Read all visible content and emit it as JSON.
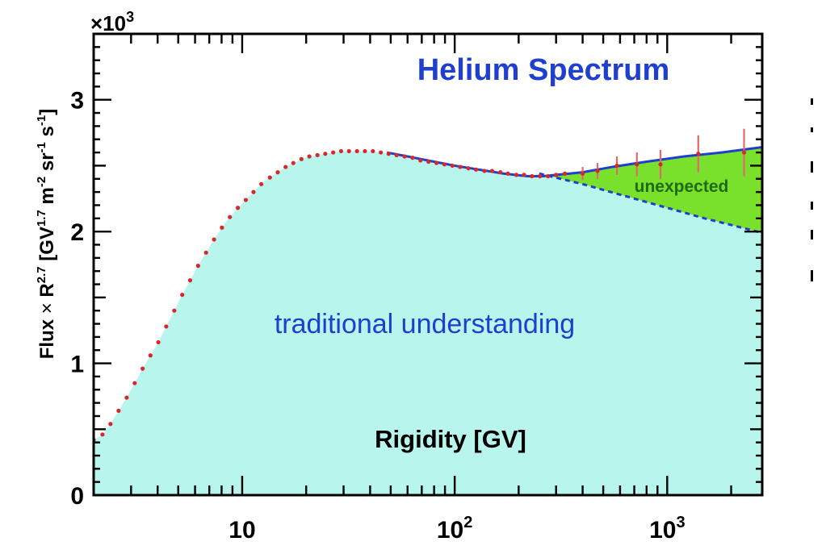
{
  "chart_data": {
    "type": "line",
    "title": "Helium Spectrum",
    "xlabel": "Rigidity [GV]",
    "ylabel": "Flux × R^2.7 [GV^1.7 m^-2 sr^-1 s^-1]",
    "ylabel_parts": {
      "a": "Flux",
      "times": "×",
      "b": "R",
      "b_sup": "2.7",
      "c": "[GV",
      "c_sup": "1.7",
      "d": "m",
      "d_sup": "-2",
      "e": "sr",
      "e_sup": "-1",
      "f": "s",
      "f_sup": "-1",
      "g": "]"
    },
    "y_multiplier": {
      "base": "×10",
      "exp": "3"
    },
    "x_scale": "log",
    "xlim": [
      2,
      2800
    ],
    "ylim": [
      0,
      3.5
    ],
    "x_ticks": [
      {
        "value": 10,
        "base": "10",
        "exp": ""
      },
      {
        "value": 100,
        "base": "10",
        "exp": "2"
      },
      {
        "value": 1000,
        "base": "10",
        "exp": "3"
      }
    ],
    "y_ticks": [
      {
        "value": 0,
        "label": "0"
      },
      {
        "value": 1,
        "label": "1"
      },
      {
        "value": 2,
        "label": "2"
      },
      {
        "value": 3,
        "label": "3"
      }
    ],
    "annotations": [
      {
        "text": "traditional understanding",
        "color": "#1c3fd0"
      },
      {
        "text": "unexpected",
        "color": "#1f6b12"
      }
    ],
    "region_colors": {
      "traditional": "#b8f5ec",
      "unexpected": "#79e02c",
      "fit_line": "#1f3fcf",
      "data_points": "#d8282a"
    },
    "series": [
      {
        "name": "data",
        "x": [
          2.0,
          2.2,
          2.4,
          2.62,
          2.86,
          3.12,
          3.4,
          3.7,
          4.03,
          4.39,
          4.79,
          5.22,
          5.69,
          6.2,
          6.76,
          7.37,
          8.03,
          8.75,
          9.54,
          10.4,
          11.3,
          12.3,
          13.5,
          14.7,
          16.0,
          17.4,
          19.0,
          20.7,
          22.6,
          24.6,
          26.8,
          29.2,
          31.8,
          34.7,
          37.8,
          41.2,
          44.9,
          48.9,
          53.3,
          58.1,
          63.3,
          69.0,
          75.3,
          82.1,
          89.5,
          97.5,
          106,
          116,
          126,
          138,
          150,
          164,
          178,
          195,
          212,
          231,
          252,
          275,
          300,
          330,
          400,
          470,
          580,
          720,
          930,
          1400,
          2300
        ],
        "y": [
          0.42,
          0.46,
          0.54,
          0.64,
          0.74,
          0.85,
          0.96,
          1.06,
          1.16,
          1.28,
          1.4,
          1.52,
          1.63,
          1.74,
          1.84,
          1.94,
          2.03,
          2.11,
          2.18,
          2.24,
          2.3,
          2.36,
          2.41,
          2.45,
          2.49,
          2.52,
          2.55,
          2.57,
          2.58,
          2.59,
          2.6,
          2.61,
          2.61,
          2.61,
          2.61,
          2.61,
          2.6,
          2.59,
          2.58,
          2.57,
          2.56,
          2.54,
          2.53,
          2.52,
          2.51,
          2.5,
          2.49,
          2.48,
          2.47,
          2.46,
          2.46,
          2.45,
          2.44,
          2.43,
          2.43,
          2.42,
          2.42,
          2.42,
          2.43,
          2.44,
          2.44,
          2.46,
          2.5,
          2.51,
          2.51,
          2.59,
          2.6
        ],
        "err": [
          0,
          0,
          0,
          0,
          0,
          0,
          0,
          0,
          0,
          0,
          0,
          0,
          0,
          0,
          0,
          0,
          0,
          0,
          0,
          0,
          0,
          0,
          0,
          0,
          0,
          0,
          0,
          0,
          0,
          0,
          0,
          0,
          0,
          0,
          0,
          0,
          0,
          0,
          0,
          0,
          0,
          0,
          0,
          0,
          0,
          0,
          0,
          0,
          0,
          0,
          0,
          0,
          0,
          0,
          0,
          0,
          0,
          0,
          0,
          0,
          0.05,
          0.06,
          0.07,
          0.09,
          0.11,
          0.14,
          0.18
        ]
      },
      {
        "name": "fit",
        "x": [
          48,
          60,
          80,
          100,
          130,
          170,
          220,
          260,
          300,
          400,
          550,
          800,
          1200,
          1800,
          2800
        ],
        "y": [
          2.6,
          2.57,
          2.53,
          2.5,
          2.47,
          2.44,
          2.42,
          2.42,
          2.43,
          2.45,
          2.49,
          2.53,
          2.57,
          2.6,
          2.64
        ]
      },
      {
        "name": "traditional",
        "x": [
          250,
          400,
          700,
          1000,
          1500,
          2000,
          2800
        ],
        "y": [
          2.44,
          2.36,
          2.25,
          2.18,
          2.1,
          2.05,
          1.99
        ]
      }
    ]
  }
}
